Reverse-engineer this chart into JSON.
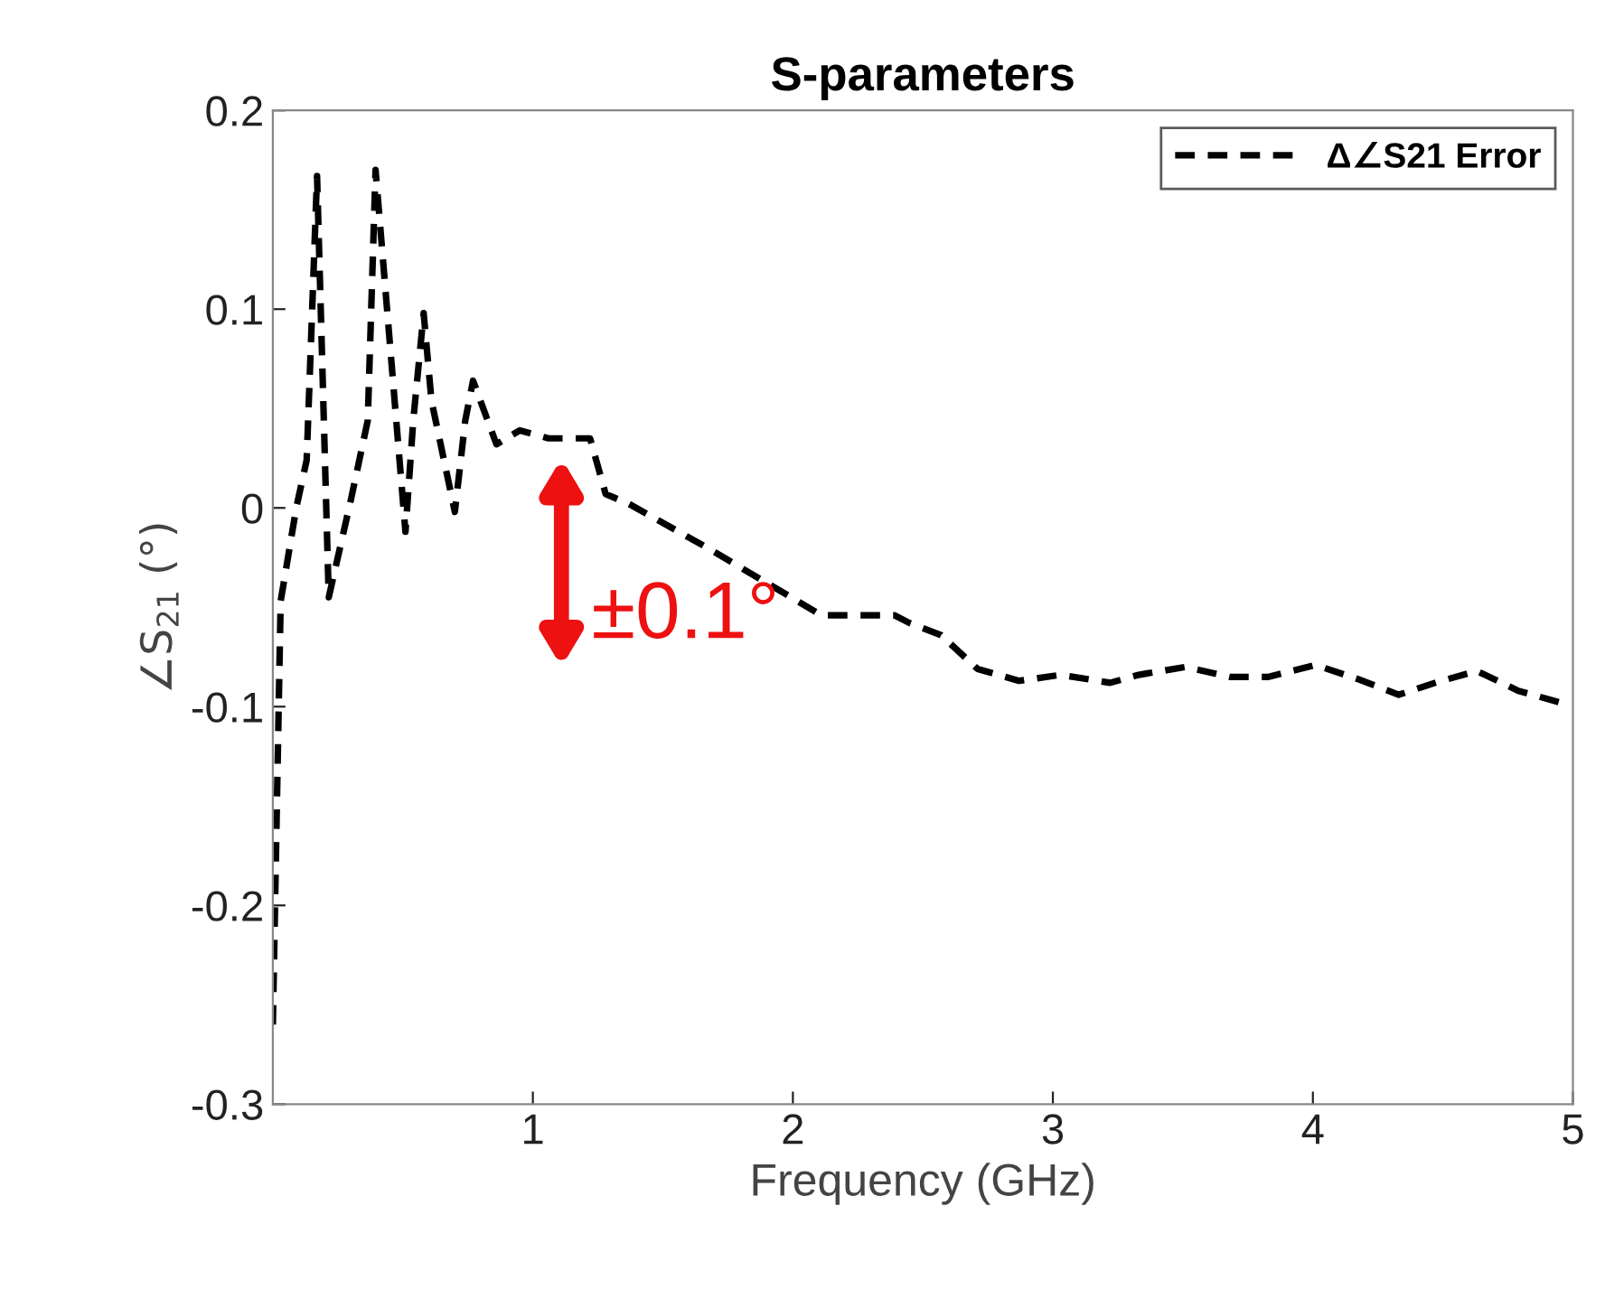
{
  "chart_data": {
    "type": "line",
    "title": "S-parameters",
    "xlabel": "Frequency (GHz)",
    "ylabel": "∠S$_{21}$ (°)",
    "xlim": [
      0,
      5
    ],
    "xticks": [
      1,
      2,
      3,
      4,
      5
    ],
    "ylim": [
      -0.3,
      0.2
    ],
    "yticks": [
      -0.3,
      -0.2,
      -0.1,
      0,
      0.1,
      0.2
    ],
    "grid": false,
    "legend": "top right",
    "line_style": "dashed",
    "marker": "none",
    "annotations": [
      "±0.1°"
    ],
    "series": [
      {
        "name": "Δ∠S21 Error",
        "color": "#000000",
        "x": [
          0.0,
          0.03,
          0.09,
          0.13,
          0.17,
          0.215,
          0.3,
          0.365,
          0.395,
          0.51,
          0.54,
          0.58,
          0.61,
          0.7,
          0.74,
          0.77,
          0.86,
          0.95,
          1.06,
          1.22,
          1.28,
          1.37,
          1.67,
          2.11,
          2.39,
          2.45,
          2.57,
          2.71,
          2.87,
          3.03,
          3.22,
          3.33,
          3.51,
          3.68,
          3.83,
          4.01,
          4.17,
          4.33,
          4.47,
          4.63,
          4.79,
          4.98
        ],
        "values": [
          -0.26,
          -0.047,
          0.0,
          0.024,
          0.167,
          -0.045,
          0.004,
          0.044,
          0.17,
          -0.012,
          0.044,
          0.098,
          0.054,
          -0.002,
          0.044,
          0.064,
          0.032,
          0.039,
          0.035,
          0.035,
          0.007,
          0.002,
          -0.02,
          -0.054,
          -0.054,
          -0.058,
          -0.064,
          -0.081,
          -0.087,
          -0.084,
          -0.088,
          -0.084,
          -0.08,
          -0.085,
          -0.085,
          -0.079,
          -0.086,
          -0.094,
          -0.088,
          -0.082,
          -0.092,
          -0.099
        ]
      }
    ]
  }
}
